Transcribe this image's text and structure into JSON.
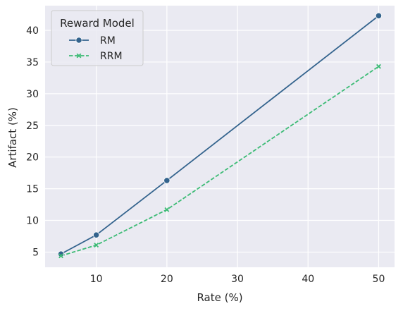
{
  "chart_data": {
    "type": "line",
    "xlabel": "Rate (%)",
    "ylabel": "Artifact (%)",
    "xlim": [
      2.75,
      52.25
    ],
    "ylim": [
      2.6,
      43.9
    ],
    "xticks": [
      10,
      20,
      30,
      40,
      50
    ],
    "yticks": [
      5,
      10,
      15,
      20,
      25,
      30,
      35,
      40
    ],
    "grid": true,
    "legend": {
      "title": "Reward Model",
      "placement": "top-left"
    },
    "series": [
      {
        "name": "RM",
        "color": "#33638d",
        "marker": "circle",
        "dash": "solid",
        "x": [
          5,
          10,
          20,
          50
        ],
        "y": [
          4.7,
          7.7,
          16.3,
          42.3
        ]
      },
      {
        "name": "RRM",
        "color": "#3cbb75",
        "marker": "x",
        "dash": "dashed",
        "x": [
          5,
          10,
          20,
          50
        ],
        "y": [
          4.4,
          6.1,
          11.7,
          34.3
        ]
      }
    ]
  }
}
